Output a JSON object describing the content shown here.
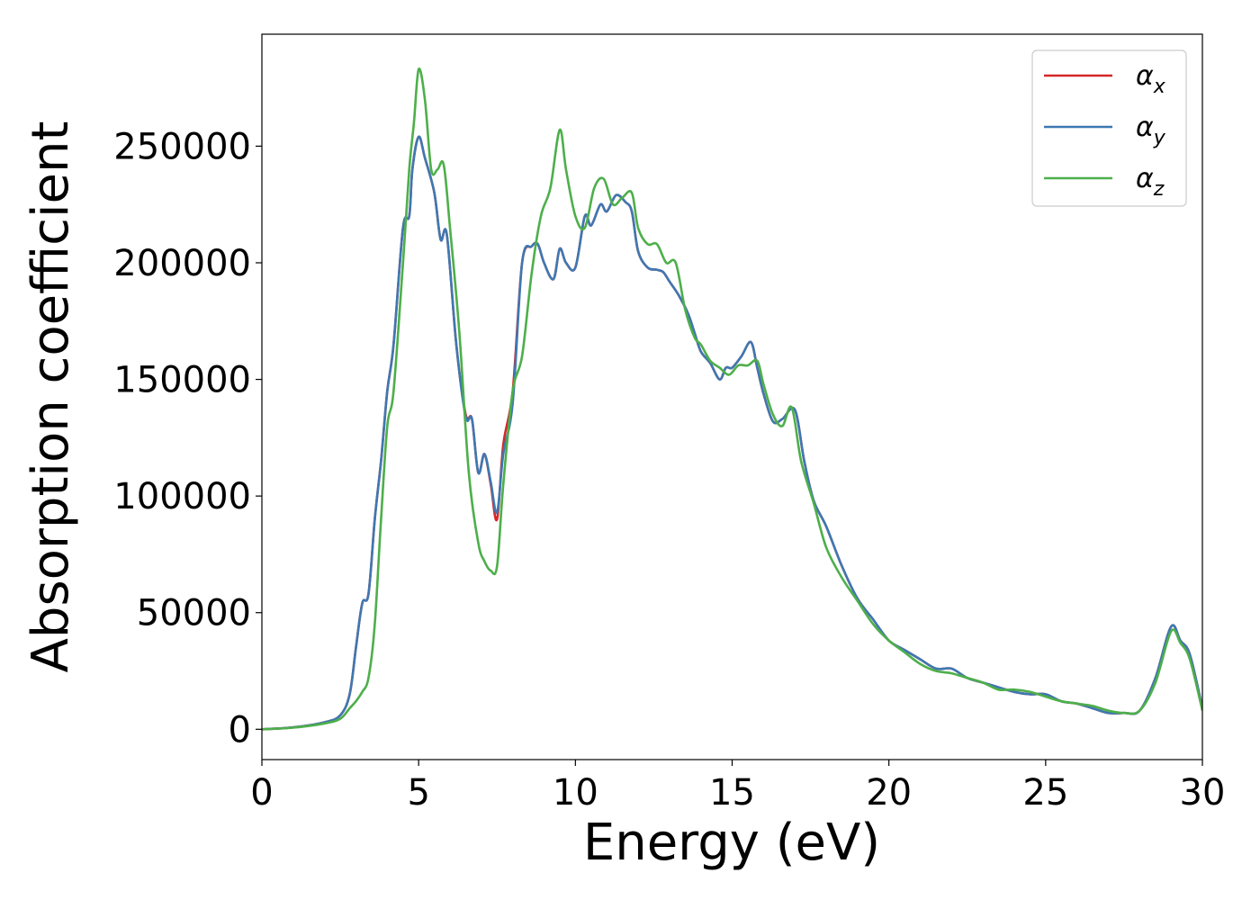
{
  "chart_data": {
    "type": "line",
    "title": "",
    "xlabel": "Energy (eV)",
    "ylabel": "Absorption coefficient",
    "xlim": [
      0,
      30
    ],
    "ylim": [
      -13000,
      298000
    ],
    "xticks": [
      0,
      5,
      10,
      15,
      20,
      25,
      30
    ],
    "xtick_labels": [
      "0",
      "5",
      "10",
      "15",
      "20",
      "25",
      "30"
    ],
    "yticks": [
      0,
      50000,
      100000,
      150000,
      200000,
      250000
    ],
    "ytick_labels": [
      "0",
      "50000",
      "100000",
      "150000",
      "200000",
      "250000"
    ],
    "grid": false,
    "legend_position": "top-right",
    "series": [
      {
        "name": "αx",
        "label_base": "α",
        "label_sub": "x",
        "color": "#d62728",
        "x": [
          0,
          1,
          2,
          2.5,
          2.8,
          3.0,
          3.2,
          3.4,
          3.6,
          3.8,
          4.0,
          4.2,
          4.5,
          4.7,
          4.8,
          5.0,
          5.2,
          5.5,
          5.7,
          5.9,
          6.2,
          6.5,
          6.7,
          6.9,
          7.1,
          7.3,
          7.5,
          7.7,
          8.0,
          8.3,
          8.6,
          8.8,
          9.0,
          9.3,
          9.5,
          9.7,
          10.0,
          10.3,
          10.5,
          10.8,
          11.0,
          11.3,
          11.6,
          11.8,
          12.0,
          12.3,
          12.6,
          12.8,
          13.0,
          13.3,
          13.6,
          13.8,
          14.0,
          14.3,
          14.6,
          14.8,
          15.0,
          15.3,
          15.6,
          15.8,
          16.0,
          16.3,
          16.6,
          17.0,
          17.3,
          17.6,
          18.0,
          18.5,
          19.0,
          19.5,
          20.0,
          20.5,
          21.0,
          21.5,
          22.0,
          22.5,
          23.0,
          23.5,
          24.0,
          24.5,
          25.0,
          25.5,
          26.0,
          26.5,
          27.0,
          27.5,
          28.0,
          28.5,
          29.0,
          29.3,
          29.6,
          30.0
        ],
        "y": [
          0,
          800,
          3000,
          6000,
          15000,
          35000,
          54000,
          58000,
          90000,
          115000,
          145000,
          165000,
          215000,
          220000,
          240000,
          254000,
          245000,
          230000,
          210000,
          212000,
          165000,
          135000,
          133000,
          110000,
          118000,
          105000,
          90000,
          122000,
          145000,
          200000,
          207000,
          208000,
          200000,
          193000,
          206000,
          200000,
          198000,
          220000,
          216000,
          225000,
          222000,
          229000,
          226000,
          222000,
          205000,
          198000,
          197000,
          196000,
          192000,
          186000,
          178000,
          170000,
          162000,
          157000,
          150000,
          155000,
          155000,
          160000,
          166000,
          155000,
          144000,
          132000,
          133000,
          137000,
          115000,
          98000,
          87000,
          70000,
          56000,
          47000,
          38000,
          34000,
          30000,
          26000,
          26000,
          22000,
          20000,
          18000,
          16000,
          15000,
          15000,
          12000,
          11000,
          9000,
          7000,
          7000,
          8000,
          22000,
          44000,
          38000,
          32000,
          9000
        ]
      },
      {
        "name": "αy",
        "label_base": "α",
        "label_sub": "y",
        "color": "#3e78b2",
        "x": [
          0,
          1,
          2,
          2.5,
          2.8,
          3.0,
          3.2,
          3.4,
          3.6,
          3.8,
          4.0,
          4.2,
          4.5,
          4.7,
          4.8,
          5.0,
          5.2,
          5.5,
          5.7,
          5.9,
          6.2,
          6.5,
          6.7,
          6.9,
          7.1,
          7.3,
          7.5,
          7.7,
          8.0,
          8.3,
          8.6,
          8.8,
          9.0,
          9.3,
          9.5,
          9.7,
          10.0,
          10.3,
          10.5,
          10.8,
          11.0,
          11.3,
          11.6,
          11.8,
          12.0,
          12.3,
          12.6,
          12.8,
          13.0,
          13.3,
          13.6,
          13.8,
          14.0,
          14.3,
          14.6,
          14.8,
          15.0,
          15.3,
          15.6,
          15.8,
          16.0,
          16.3,
          16.6,
          17.0,
          17.3,
          17.6,
          18.0,
          18.5,
          19.0,
          19.5,
          20.0,
          20.5,
          21.0,
          21.5,
          22.0,
          22.5,
          23.0,
          23.5,
          24.0,
          24.5,
          25.0,
          25.5,
          26.0,
          26.5,
          27.0,
          27.5,
          28.0,
          28.5,
          29.0,
          29.3,
          29.6,
          30.0
        ],
        "y": [
          0,
          800,
          3000,
          6000,
          15000,
          35000,
          54000,
          58000,
          90000,
          115000,
          145000,
          165000,
          215000,
          220000,
          240000,
          254000,
          245000,
          230000,
          210000,
          212000,
          165000,
          134000,
          133000,
          110000,
          118000,
          106000,
          93000,
          118000,
          140000,
          200000,
          207000,
          208000,
          200000,
          193000,
          206000,
          200000,
          198000,
          220000,
          216000,
          225000,
          222000,
          229000,
          226000,
          222000,
          205000,
          198000,
          197000,
          196000,
          192000,
          186000,
          178000,
          170000,
          162000,
          157000,
          150000,
          155000,
          155000,
          160000,
          166000,
          155000,
          144000,
          132000,
          133000,
          137000,
          115000,
          98000,
          87000,
          70000,
          56000,
          47000,
          38000,
          34000,
          30000,
          26000,
          26000,
          22000,
          20000,
          18000,
          16000,
          15000,
          15000,
          12000,
          11000,
          9000,
          7000,
          7000,
          8000,
          22000,
          44000,
          38000,
          32000,
          9000
        ]
      },
      {
        "name": "αz",
        "label_base": "α",
        "label_sub": "z",
        "color": "#4daf4a",
        "x": [
          0,
          1,
          2,
          2.5,
          2.8,
          3.0,
          3.2,
          3.4,
          3.6,
          3.8,
          4.0,
          4.2,
          4.5,
          4.7,
          4.85,
          5.0,
          5.2,
          5.4,
          5.6,
          5.8,
          6.0,
          6.3,
          6.6,
          6.9,
          7.1,
          7.3,
          7.5,
          7.7,
          8.0,
          8.3,
          8.6,
          8.9,
          9.2,
          9.5,
          9.7,
          10.0,
          10.3,
          10.6,
          10.9,
          11.2,
          11.5,
          11.8,
          12.0,
          12.3,
          12.6,
          12.9,
          13.2,
          13.5,
          13.8,
          14.0,
          14.3,
          14.6,
          14.9,
          15.2,
          15.5,
          15.8,
          16.0,
          16.3,
          16.6,
          16.9,
          17.2,
          17.6,
          18.0,
          18.5,
          19.0,
          19.5,
          20.0,
          20.5,
          21.0,
          21.5,
          22.0,
          22.5,
          23.0,
          23.5,
          24.0,
          24.5,
          25.0,
          25.5,
          26.0,
          26.5,
          27.0,
          27.5,
          28.0,
          28.5,
          29.0,
          29.3,
          29.6,
          30.0
        ],
        "y": [
          0,
          700,
          2500,
          4500,
          9000,
          12000,
          16000,
          22000,
          45000,
          90000,
          130000,
          145000,
          200000,
          240000,
          260000,
          283000,
          270000,
          240000,
          240000,
          242000,
          215000,
          170000,
          110000,
          80000,
          72000,
          68000,
          70000,
          105000,
          145000,
          160000,
          195000,
          220000,
          232000,
          257000,
          240000,
          220000,
          215000,
          232000,
          236000,
          225000,
          228000,
          230000,
          215000,
          208000,
          208000,
          200000,
          200000,
          180000,
          168000,
          165000,
          158000,
          155000,
          152000,
          156000,
          156000,
          158000,
          148000,
          135000,
          130000,
          138000,
          115000,
          97000,
          78000,
          65000,
          55000,
          45000,
          38000,
          33000,
          28000,
          25000,
          24000,
          22000,
          20000,
          17000,
          17000,
          16000,
          14000,
          12000,
          11000,
          10000,
          8000,
          7000,
          8000,
          20000,
          42000,
          37000,
          30000,
          8000
        ]
      }
    ]
  }
}
